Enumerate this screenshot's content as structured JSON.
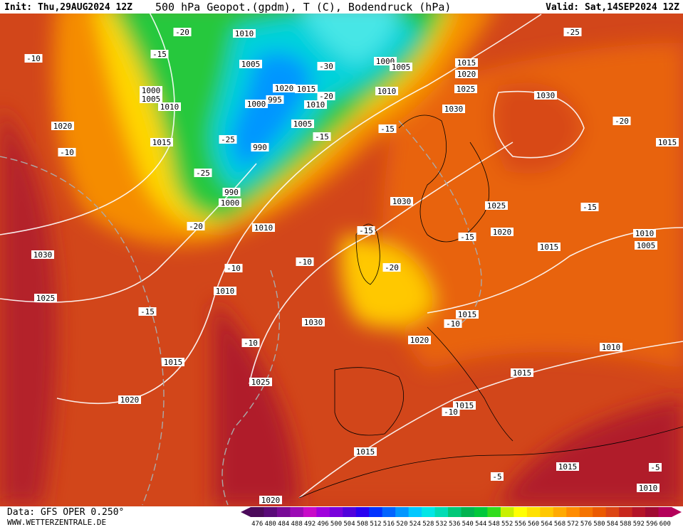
{
  "header": {
    "init": "Init: Thu,29AUG2024 12Z",
    "title": "500 hPa Geopot.(gpdm), T (C), Bodendruck (hPa)",
    "valid": "Valid: Sat,14SEP2024 12Z"
  },
  "footer": {
    "data": "Data: GFS OPER 0.250°",
    "site": "WWW.WETTERZENTRALE.DE"
  },
  "colorbar": {
    "values": [
      476,
      480,
      484,
      488,
      492,
      496,
      500,
      504,
      508,
      512,
      516,
      520,
      524,
      528,
      532,
      536,
      540,
      544,
      548,
      552,
      556,
      560,
      564,
      568,
      572,
      576,
      580,
      584,
      588,
      592,
      596,
      600
    ],
    "colors": [
      "#4b0a5a",
      "#5a0a78",
      "#780a96",
      "#9b0ab4",
      "#c80ac8",
      "#a000dc",
      "#7800dc",
      "#5000dc",
      "#2800f0",
      "#0032ff",
      "#0064ff",
      "#0096ff",
      "#00c8ff",
      "#00e6e6",
      "#00dcb4",
      "#00c878",
      "#00b450",
      "#00c83c",
      "#32dc1e",
      "#c8f000",
      "#ffff00",
      "#ffe100",
      "#ffc800",
      "#ffaa00",
      "#ff8c00",
      "#f57300",
      "#eb5a00",
      "#dc4614",
      "#c8281e",
      "#b41428",
      "#a00a32",
      "#b4005a"
    ]
  },
  "map_labels": [
    "1010",
    "-20",
    "1005",
    "-15",
    "-10",
    "1000",
    "1005",
    "1010",
    "1020",
    "-10",
    "1015",
    "1020",
    "1015",
    "1000",
    "995",
    "1010",
    "-30",
    "-20",
    "1005",
    "-15",
    "-25",
    "990",
    "-25",
    "990",
    "1000",
    "-20",
    "1010",
    "1000",
    "1005",
    "1010",
    "1015",
    "1020",
    "1025",
    "1030",
    "-15",
    "1030",
    "-20",
    "1015",
    "1030",
    "1025",
    "-15",
    "1020",
    "-15",
    "-15",
    "1015",
    "1010",
    "1005",
    "1030",
    "-10",
    "-10",
    "-20",
    "1010",
    "1025",
    "-15",
    "1015",
    "1030",
    "-10",
    "1020",
    "-10",
    "1010",
    "1015",
    "1015",
    "1025",
    "1020",
    "1015",
    "-10",
    "1015",
    "1015",
    "-5",
    "-5",
    "1010",
    "1020",
    "-25"
  ]
}
